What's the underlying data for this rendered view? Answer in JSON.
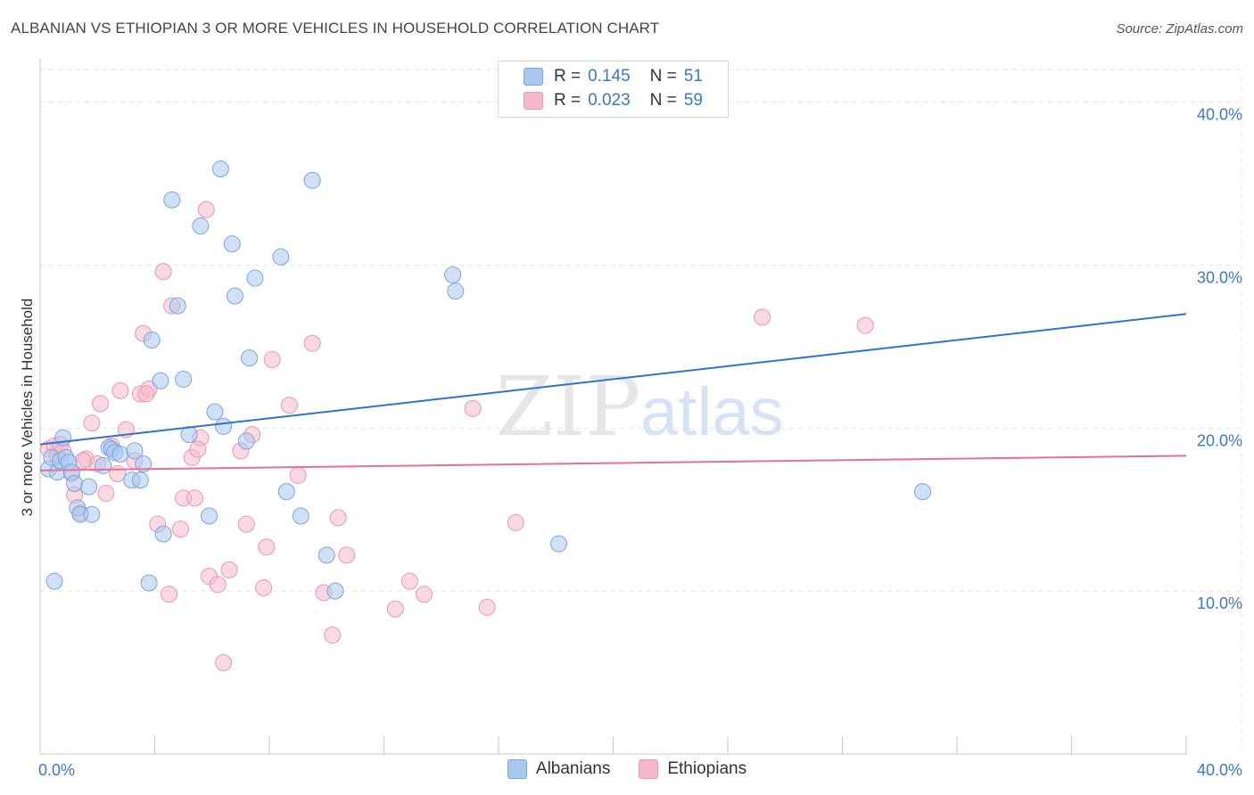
{
  "header": {
    "title": "ALBANIAN VS ETHIOPIAN 3 OR MORE VEHICLES IN HOUSEHOLD CORRELATION CHART",
    "source": "Source: ZipAtlas.com"
  },
  "colors": {
    "albanian_fill": "#a9c8f0",
    "albanian_stroke": "#7aa6de",
    "albanian_line": "#2f72cf",
    "ethiopian_fill": "#f6b9cc",
    "ethiopian_stroke": "#ec96b2",
    "ethiopian_line": "#e56f98",
    "axis_label": "#3a78c9",
    "grid": "#e3e3e3"
  },
  "legend": {
    "albanian": {
      "r_label": "R =",
      "r_value": "0.145",
      "n_label": "N =",
      "n_value": "51"
    },
    "ethiopian": {
      "r_label": "R =",
      "r_value": "0.023",
      "n_label": "N =",
      "n_value": "59"
    }
  },
  "bottom_legend": {
    "albanians": "Albanians",
    "ethiopians": "Ethiopians"
  },
  "watermark": {
    "zip": "ZIP",
    "atlas": "atlas"
  },
  "chart_data": {
    "type": "scatter",
    "title": "ALBANIAN VS ETHIOPIAN 3 OR MORE VEHICLES IN HOUSEHOLD CORRELATION CHART",
    "xlabel": "",
    "ylabel": "3 or more Vehicles in Household",
    "xlim": [
      0,
      40
    ],
    "ylim": [
      0,
      42
    ],
    "x_tick_labels": [
      "0.0%",
      "40.0%"
    ],
    "y_ticks": [
      10,
      20,
      30,
      40
    ],
    "y_tick_labels": [
      "10.0%",
      "20.0%",
      "30.0%",
      "40.0%"
    ],
    "series": [
      {
        "name": "Albanians",
        "trend": {
          "x": [
            0,
            40
          ],
          "y": [
            19.0,
            27.0
          ]
        },
        "points": [
          [
            0.3,
            17.5
          ],
          [
            0.4,
            18.2
          ],
          [
            0.5,
            10.6
          ],
          [
            0.6,
            17.3
          ],
          [
            0.7,
            18.0
          ],
          [
            0.8,
            19.4
          ],
          [
            0.9,
            18.2
          ],
          [
            1.0,
            17.9
          ],
          [
            1.1,
            17.3
          ],
          [
            1.2,
            16.6
          ],
          [
            1.3,
            15.1
          ],
          [
            1.4,
            14.7
          ],
          [
            1.7,
            16.4
          ],
          [
            1.8,
            14.7
          ],
          [
            2.4,
            18.8
          ],
          [
            2.5,
            18.7
          ],
          [
            2.6,
            18.5
          ],
          [
            2.8,
            18.4
          ],
          [
            3.2,
            16.8
          ],
          [
            3.3,
            18.6
          ],
          [
            3.5,
            16.8
          ],
          [
            3.6,
            17.8
          ],
          [
            3.8,
            10.5
          ],
          [
            3.9,
            25.4
          ],
          [
            4.2,
            22.9
          ],
          [
            4.3,
            13.5
          ],
          [
            4.6,
            34.0
          ],
          [
            4.8,
            27.5
          ],
          [
            5.0,
            23.0
          ],
          [
            5.2,
            19.6
          ],
          [
            5.6,
            32.4
          ],
          [
            5.9,
            14.6
          ],
          [
            6.1,
            21.0
          ],
          [
            6.3,
            35.9
          ],
          [
            6.4,
            20.1
          ],
          [
            6.7,
            31.3
          ],
          [
            6.8,
            28.1
          ],
          [
            7.2,
            19.2
          ],
          [
            7.3,
            24.3
          ],
          [
            7.5,
            29.2
          ],
          [
            8.4,
            30.5
          ],
          [
            8.6,
            16.1
          ],
          [
            9.1,
            14.6
          ],
          [
            9.5,
            35.2
          ],
          [
            10.0,
            12.2
          ],
          [
            10.3,
            10.0
          ],
          [
            14.4,
            29.4
          ],
          [
            14.5,
            28.4
          ],
          [
            18.1,
            12.9
          ],
          [
            30.8,
            16.1
          ],
          [
            2.2,
            17.7
          ]
        ]
      },
      {
        "name": "Ethiopians",
        "trend": {
          "x": [
            0,
            40
          ],
          "y": [
            17.4,
            18.3
          ]
        },
        "points": [
          [
            0.3,
            18.7
          ],
          [
            0.5,
            18.9
          ],
          [
            0.6,
            18.3
          ],
          [
            0.7,
            19.0
          ],
          [
            0.8,
            18.6
          ],
          [
            1.1,
            17.2
          ],
          [
            1.2,
            15.9
          ],
          [
            1.4,
            14.8
          ],
          [
            1.6,
            18.1
          ],
          [
            1.8,
            20.3
          ],
          [
            2.0,
            17.8
          ],
          [
            2.1,
            21.5
          ],
          [
            2.3,
            16.0
          ],
          [
            2.5,
            18.9
          ],
          [
            2.7,
            17.2
          ],
          [
            2.8,
            22.3
          ],
          [
            3.0,
            19.9
          ],
          [
            3.3,
            18.0
          ],
          [
            3.5,
            22.1
          ],
          [
            3.6,
            25.8
          ],
          [
            3.8,
            22.4
          ],
          [
            4.1,
            14.1
          ],
          [
            4.3,
            29.6
          ],
          [
            4.5,
            9.8
          ],
          [
            4.6,
            27.5
          ],
          [
            4.9,
            13.8
          ],
          [
            5.0,
            15.7
          ],
          [
            5.3,
            18.2
          ],
          [
            5.4,
            15.7
          ],
          [
            5.6,
            19.4
          ],
          [
            5.8,
            33.4
          ],
          [
            5.9,
            10.9
          ],
          [
            6.2,
            10.4
          ],
          [
            6.4,
            5.6
          ],
          [
            6.6,
            11.3
          ],
          [
            7.0,
            18.6
          ],
          [
            7.2,
            14.1
          ],
          [
            7.4,
            19.6
          ],
          [
            7.8,
            10.2
          ],
          [
            7.9,
            12.7
          ],
          [
            8.1,
            24.2
          ],
          [
            8.7,
            21.4
          ],
          [
            9.0,
            17.1
          ],
          [
            9.5,
            25.2
          ],
          [
            9.9,
            9.9
          ],
          [
            10.2,
            7.3
          ],
          [
            10.4,
            14.5
          ],
          [
            10.7,
            12.2
          ],
          [
            12.4,
            8.9
          ],
          [
            12.9,
            10.6
          ],
          [
            13.4,
            9.8
          ],
          [
            15.1,
            21.2
          ],
          [
            15.6,
            9.0
          ],
          [
            16.6,
            14.2
          ],
          [
            25.2,
            26.8
          ],
          [
            28.8,
            26.3
          ],
          [
            3.7,
            22.1
          ],
          [
            5.5,
            18.7
          ],
          [
            1.5,
            18.0
          ]
        ]
      }
    ]
  }
}
